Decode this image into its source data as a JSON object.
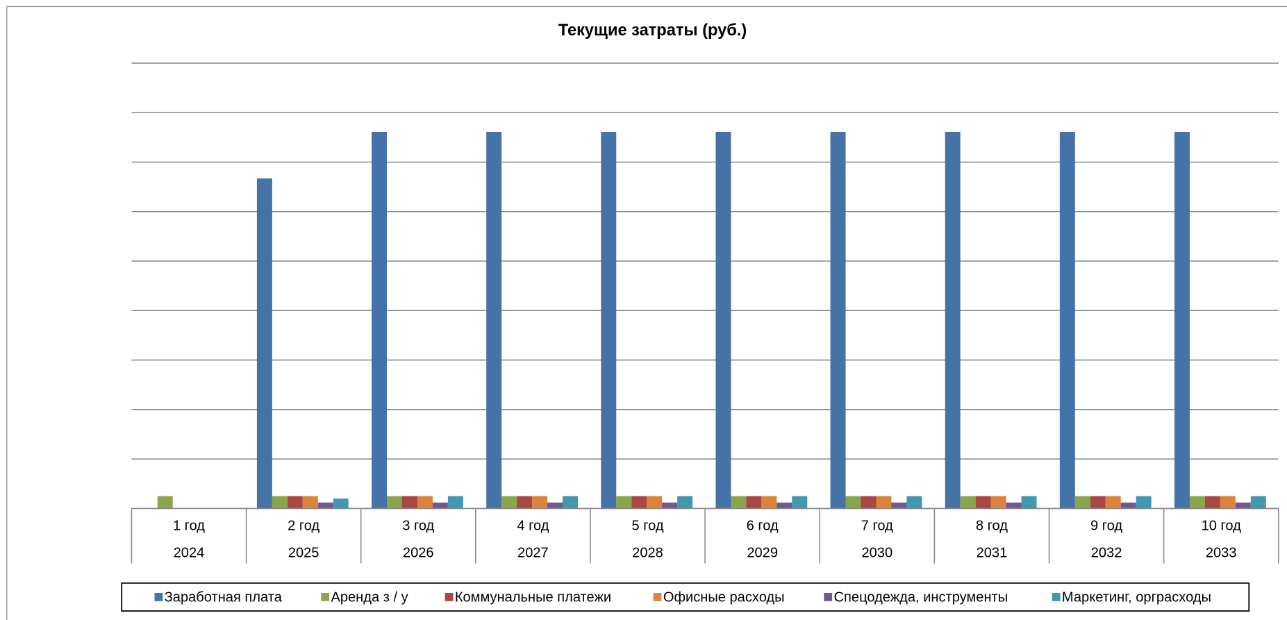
{
  "chart_data": {
    "type": "bar",
    "title": "Текущие затраты (руб.)",
    "categories": [
      "1 год",
      "2 год",
      "3 год",
      "4 год",
      "5 год",
      "6 год",
      "7 год",
      "8 год",
      "9 год",
      "10 год"
    ],
    "years": [
      "2024",
      "2025",
      "2026",
      "2027",
      "2028",
      "2029",
      "2030",
      "2031",
      "2032",
      "2033"
    ],
    "series": [
      {
        "name": "Заработная плата",
        "color": "#4572a7",
        "values": [
          0,
          6.67,
          7.61,
          7.61,
          7.61,
          7.61,
          7.61,
          7.61,
          7.61,
          7.61
        ]
      },
      {
        "name": "Аренда з / у",
        "color": "#89a54e",
        "values": [
          0.25,
          0.25,
          0.25,
          0.25,
          0.25,
          0.25,
          0.25,
          0.25,
          0.25,
          0.25
        ]
      },
      {
        "name": "Коммунальные платежи",
        "color": "#aa4643",
        "values": [
          0,
          0.25,
          0.25,
          0.25,
          0.25,
          0.25,
          0.25,
          0.25,
          0.25,
          0.25
        ]
      },
      {
        "name": "Офисные расходы",
        "color": "#db843d",
        "values": [
          0,
          0.25,
          0.25,
          0.25,
          0.25,
          0.25,
          0.25,
          0.25,
          0.25,
          0.25
        ]
      },
      {
        "name": "Спецодежда, инструменты",
        "color": "#71588f",
        "values": [
          0,
          0.12,
          0.12,
          0.12,
          0.12,
          0.12,
          0.12,
          0.12,
          0.12,
          0.12
        ]
      },
      {
        "name": "Маркетинг, орграсходы",
        "color": "#4198af",
        "values": [
          0,
          0.2,
          0.25,
          0.25,
          0.25,
          0.25,
          0.25,
          0.25,
          0.25,
          0.25
        ]
      }
    ],
    "ylim": [
      0,
      9
    ],
    "yticks": [
      0,
      1,
      2,
      3,
      4,
      5,
      6,
      7,
      8,
      9
    ],
    "grid": true,
    "legend": "bottom"
  }
}
